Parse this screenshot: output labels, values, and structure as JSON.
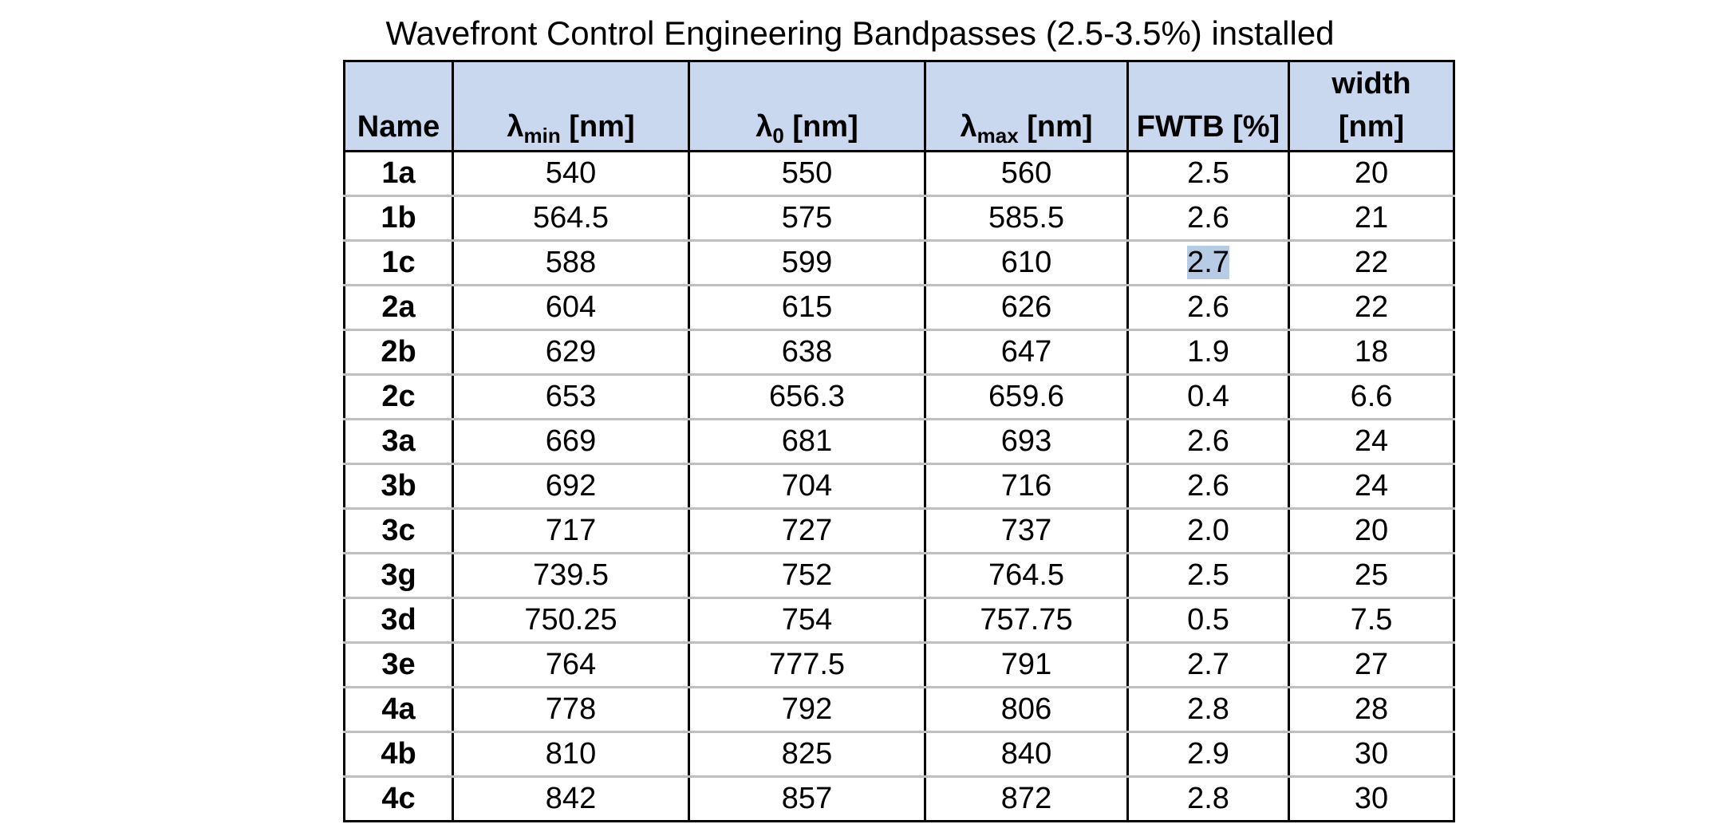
{
  "title": "Wavefront Control Engineering Bandpasses (2.5-3.5%) installed",
  "columns": {
    "name": "Name",
    "lambda_min": {
      "symbol": "λ",
      "sub": "min",
      "unit": " [nm]"
    },
    "lambda_0": {
      "symbol": "λ",
      "sub": "0",
      "unit": " [nm]"
    },
    "lambda_max": {
      "symbol": "λ",
      "sub": "max",
      "unit": " [nm]"
    },
    "fwtb": "FWTB [%]",
    "width_line1": "width",
    "width_line2": "[nm]"
  },
  "rows": [
    {
      "name": "1a",
      "min": "540",
      "lam0": "550",
      "max": "560",
      "fwtb": "2.5",
      "width": "20"
    },
    {
      "name": "1b",
      "min": "564.5",
      "lam0": "575",
      "max": "585.5",
      "fwtb": "2.6",
      "width": "21"
    },
    {
      "name": "1c",
      "min": "588",
      "lam0": "599",
      "max": "610",
      "fwtb": "2.7",
      "width": "22"
    },
    {
      "name": "2a",
      "min": "604",
      "lam0": "615",
      "max": "626",
      "fwtb": "2.6",
      "width": "22"
    },
    {
      "name": "2b",
      "min": "629",
      "lam0": "638",
      "max": "647",
      "fwtb": "1.9",
      "width": "18"
    },
    {
      "name": "2c",
      "min": "653",
      "lam0": "656.3",
      "max": "659.6",
      "fwtb": "0.4",
      "width": "6.6"
    },
    {
      "name": "3a",
      "min": "669",
      "lam0": "681",
      "max": "693",
      "fwtb": "2.6",
      "width": "24"
    },
    {
      "name": "3b",
      "min": "692",
      "lam0": "704",
      "max": "716",
      "fwtb": "2.6",
      "width": "24"
    },
    {
      "name": "3c",
      "min": "717",
      "lam0": "727",
      "max": "737",
      "fwtb": "2.0",
      "width": "20"
    },
    {
      "name": "3g",
      "min": "739.5",
      "lam0": "752",
      "max": "764.5",
      "fwtb": "2.5",
      "width": "25"
    },
    {
      "name": "3d",
      "min": "750.25",
      "lam0": "754",
      "max": "757.75",
      "fwtb": "0.5",
      "width": "7.5"
    },
    {
      "name": "3e",
      "min": "764",
      "lam0": "777.5",
      "max": "791",
      "fwtb": "2.7",
      "width": "27"
    },
    {
      "name": "4a",
      "min": "778",
      "lam0": "792",
      "max": "806",
      "fwtb": "2.8",
      "width": "28"
    },
    {
      "name": "4b",
      "min": "810",
      "lam0": "825",
      "max": "840",
      "fwtb": "2.9",
      "width": "30"
    },
    {
      "name": "4c",
      "min": "842",
      "lam0": "857",
      "max": "872",
      "fwtb": "2.8",
      "width": "30"
    }
  ],
  "selection": {
    "row": 2,
    "column": "fwtb",
    "color": "#b6cce4"
  },
  "colors": {
    "header_bg": "#c9d8ef",
    "grid_line": "#bfbfbf",
    "border": "#000000"
  }
}
